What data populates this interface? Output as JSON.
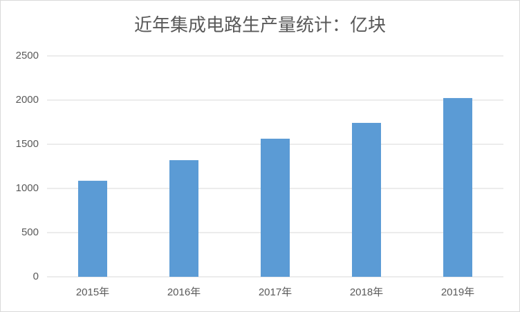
{
  "chart_data": {
    "type": "bar",
    "title": "近年集成电路生产量统计：亿块",
    "categories": [
      "2015年",
      "2016年",
      "2017年",
      "2018年",
      "2019年"
    ],
    "values": [
      1087,
      1320,
      1563,
      1742,
      2023
    ],
    "color": "#5b9bd5",
    "ylim": [
      0,
      2500
    ],
    "yticks": [
      0,
      500,
      1000,
      1500,
      2000,
      2500
    ],
    "grid": true
  }
}
